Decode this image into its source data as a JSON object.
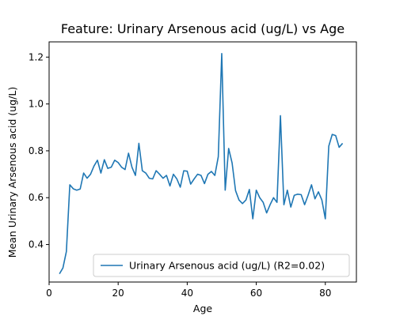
{
  "chart_data": {
    "type": "line",
    "title": "Feature: Urinary Arsenous acid (ug/L) vs Age",
    "xlabel": "Age",
    "ylabel": "Mean Urinary Arsenous acid (ug/L)",
    "xlim": [
      0,
      89
    ],
    "ylim": [
      0.24,
      1.265
    ],
    "xticks": [
      0,
      20,
      40,
      60,
      80
    ],
    "yticks": [
      0.4,
      0.6,
      0.8,
      1.0,
      1.2
    ],
    "xtick_labels": [
      "0",
      "20",
      "40",
      "60",
      "80"
    ],
    "ytick_labels": [
      "0.4",
      "0.6",
      "0.8",
      "1.0",
      "1.2"
    ],
    "grid": false,
    "legend_position": "bottom-right",
    "series": [
      {
        "name": "Urinary Arsenous acid (ug/L) (R2=0.02)",
        "color": "#1f77b4",
        "x": [
          3,
          4,
          5,
          6,
          7,
          8,
          9,
          10,
          11,
          12,
          13,
          14,
          15,
          16,
          17,
          18,
          19,
          20,
          21,
          22,
          23,
          24,
          25,
          26,
          27,
          28,
          29,
          30,
          31,
          32,
          33,
          34,
          35,
          36,
          37,
          38,
          39,
          40,
          41,
          42,
          43,
          44,
          45,
          46,
          47,
          48,
          49,
          50,
          51,
          52,
          53,
          54,
          55,
          56,
          57,
          58,
          59,
          60,
          61,
          62,
          63,
          64,
          65,
          66,
          67,
          68,
          69,
          70,
          71,
          72,
          73,
          74,
          75,
          76,
          77,
          78,
          79,
          80,
          81,
          82,
          83,
          84,
          85
        ],
        "y": [
          0.275,
          0.3,
          0.37,
          0.655,
          0.638,
          0.632,
          0.637,
          0.705,
          0.683,
          0.7,
          0.735,
          0.76,
          0.705,
          0.762,
          0.725,
          0.73,
          0.76,
          0.75,
          0.73,
          0.72,
          0.79,
          0.73,
          0.695,
          0.832,
          0.715,
          0.705,
          0.683,
          0.68,
          0.715,
          0.7,
          0.683,
          0.695,
          0.65,
          0.7,
          0.68,
          0.645,
          0.715,
          0.713,
          0.658,
          0.68,
          0.7,
          0.695,
          0.66,
          0.7,
          0.712,
          0.695,
          0.775,
          1.215,
          0.632,
          0.81,
          0.748,
          0.63,
          0.59,
          0.575,
          0.59,
          0.635,
          0.51,
          0.632,
          0.6,
          0.58,
          0.535,
          0.57,
          0.6,
          0.58,
          0.95,
          0.57,
          0.632,
          0.56,
          0.61,
          0.615,
          0.613,
          0.57,
          0.61,
          0.655,
          0.595,
          0.625,
          0.59,
          0.51,
          0.82,
          0.87,
          0.865,
          0.815,
          0.832
        ]
      }
    ]
  }
}
